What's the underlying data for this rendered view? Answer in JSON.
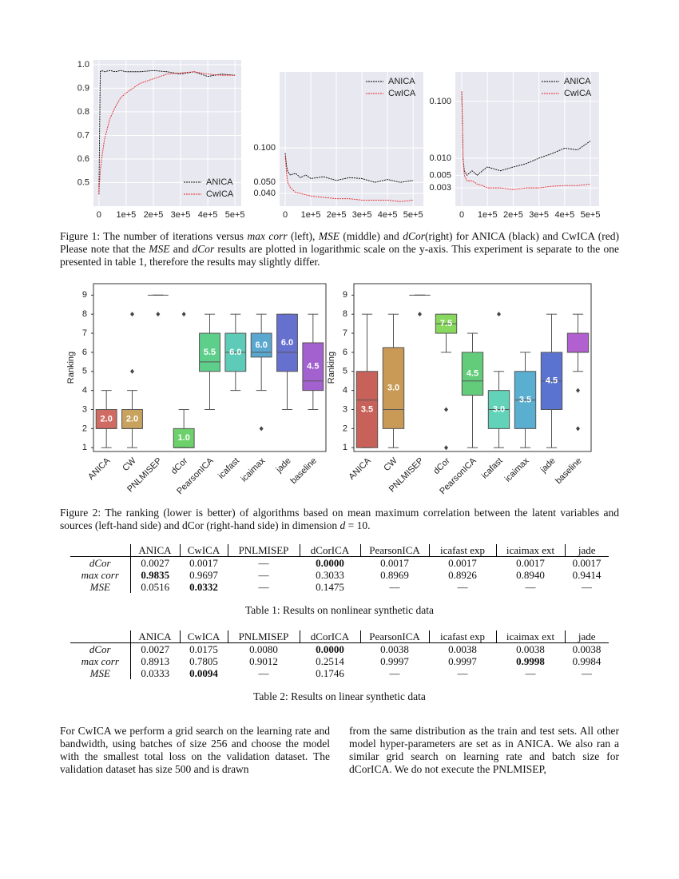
{
  "chart_data": [
    {
      "type": "line",
      "xlim": [
        -20000,
        523000
      ],
      "ylim": [
        0.4,
        1.02
      ],
      "xticks": [
        0,
        {
          "value": 100000,
          "label": "1e+5"
        },
        {
          "value": 200000,
          "label": "2e+5"
        },
        {
          "value": 300000,
          "label": "3e+5"
        },
        {
          "value": 400000,
          "label": "4e+5"
        },
        {
          "value": 500000,
          "label": "5e+5"
        }
      ],
      "yticks": [
        0.5,
        0.6,
        0.7,
        0.8,
        0.9,
        {
          "value": 1.0,
          "label": "1.0"
        }
      ],
      "grid": true,
      "legend": "lower right",
      "x": [
        0,
        5000,
        10000,
        20000,
        40000,
        60000,
        80000,
        100000,
        150000,
        200000,
        250000,
        300000,
        350000,
        400000,
        450000,
        500000
      ],
      "series": [
        {
          "name": "ANICA",
          "color": "#000000",
          "values": [
            0.45,
            0.97,
            0.975,
            0.97,
            0.975,
            0.97,
            0.975,
            0.97,
            0.97,
            0.975,
            0.97,
            0.96,
            0.97,
            0.95,
            0.96,
            0.955
          ]
        },
        {
          "name": "CwICA",
          "color": "#e8252a",
          "values": [
            0.45,
            0.55,
            0.6,
            0.68,
            0.77,
            0.82,
            0.86,
            0.88,
            0.92,
            0.94,
            0.96,
            0.965,
            0.97,
            0.96,
            0.955,
            0.955
          ]
        }
      ]
    },
    {
      "type": "line",
      "xlim": [
        -22000,
        540000
      ],
      "ylim": [
        0.031,
        0.46
      ],
      "yscale": "log",
      "xticks": [
        0,
        {
          "value": 100000,
          "label": "1e+5"
        },
        {
          "value": 200000,
          "label": "2e+5"
        },
        {
          "value": 300000,
          "label": "3e+5"
        },
        {
          "value": 400000,
          "label": "4e+5"
        },
        {
          "value": 500000,
          "label": "5e+5"
        }
      ],
      "yticks": [
        {
          "value": 0.04,
          "label": "0.040"
        },
        {
          "value": 0.05,
          "label": "0.050"
        },
        {
          "value": 0.1,
          "label": "0.100"
        }
      ],
      "grid": true,
      "legend": "upper right",
      "x": [
        0,
        5000,
        10000,
        20000,
        40000,
        60000,
        80000,
        100000,
        150000,
        200000,
        250000,
        300000,
        350000,
        400000,
        450000,
        500000
      ],
      "series": [
        {
          "name": "ANICA",
          "color": "#000000",
          "values": [
            0.09,
            0.07,
            0.062,
            0.058,
            0.06,
            0.055,
            0.058,
            0.054,
            0.056,
            0.052,
            0.055,
            0.054,
            0.05,
            0.053,
            0.05,
            0.052
          ]
        },
        {
          "name": "CwICA",
          "color": "#e8252a",
          "values": [
            0.085,
            0.06,
            0.05,
            0.045,
            0.041,
            0.04,
            0.039,
            0.038,
            0.037,
            0.036,
            0.036,
            0.035,
            0.035,
            0.035,
            0.034,
            0.035
          ]
        }
      ]
    },
    {
      "type": "line",
      "xlim": [
        -25000,
        534000
      ],
      "ylim": [
        0.00143,
        0.33
      ],
      "yscale": "log",
      "xticks": [
        0,
        {
          "value": 100000,
          "label": "1e+5"
        },
        {
          "value": 200000,
          "label": "2e+5"
        },
        {
          "value": 300000,
          "label": "3e+5"
        },
        {
          "value": 400000,
          "label": "4e+5"
        },
        {
          "value": 500000,
          "label": "5e+5"
        }
      ],
      "yticks": [
        {
          "value": 0.003,
          "label": "0.003"
        },
        {
          "value": 0.005,
          "label": "0.005"
        },
        {
          "value": 0.01,
          "label": "0.010"
        },
        {
          "value": 0.1,
          "label": "0.100"
        }
      ],
      "grid": true,
      "legend": "upper right",
      "x": [
        0,
        5000,
        10000,
        20000,
        40000,
        60000,
        80000,
        100000,
        150000,
        200000,
        250000,
        300000,
        350000,
        400000,
        450000,
        500000
      ],
      "series": [
        {
          "name": "ANICA",
          "color": "#000000",
          "values": [
            0.15,
            0.01,
            0.006,
            0.005,
            0.006,
            0.005,
            0.006,
            0.007,
            0.006,
            0.007,
            0.008,
            0.01,
            0.012,
            0.015,
            0.014,
            0.02
          ]
        },
        {
          "name": "CwICA",
          "color": "#e8252a",
          "values": [
            0.15,
            0.01,
            0.005,
            0.004,
            0.004,
            0.0035,
            0.0033,
            0.003,
            0.003,
            0.0028,
            0.003,
            0.003,
            0.0032,
            0.0033,
            0.0033,
            0.0035
          ]
        }
      ]
    },
    {
      "type": "box",
      "ylabel": "Ranking",
      "ylim": [
        0.8,
        9.6
      ],
      "yticks": [
        1,
        2,
        3,
        4,
        5,
        6,
        7,
        8,
        9
      ],
      "categories": [
        "ANICA",
        "CW",
        "PNLMISEP",
        "dCor",
        "PearsonICA",
        "icafast",
        "icaimax",
        "jade",
        "baseline"
      ],
      "colors": [
        "#cf6b62",
        "#c9a25d",
        "#a6c25a",
        "#6cd06b",
        "#5ecf8a",
        "#5ecbb8",
        "#5aa8cf",
        "#6670cf",
        "#a361cf"
      ],
      "whislo": [
        1,
        1,
        9,
        1,
        3,
        4,
        4,
        3,
        3
      ],
      "q1": [
        2,
        2,
        9,
        1,
        5,
        5,
        5.75,
        5,
        4
      ],
      "med": [
        2,
        2,
        9,
        1,
        5.5,
        6,
        6,
        6,
        4.5
      ],
      "q3": [
        3,
        3,
        9,
        2,
        7,
        7,
        7,
        8,
        6.5
      ],
      "whishi": [
        4,
        4,
        9,
        3,
        8,
        8,
        8,
        8,
        8
      ],
      "fliers": [
        [],
        [
          5,
          8
        ],
        [
          8
        ],
        [
          8
        ],
        [],
        [],
        [
          2
        ],
        [],
        []
      ],
      "value_labels": [
        "2.0",
        "2.0",
        null,
        "1.0",
        "5.5",
        "6.0",
        "6.0",
        "6.0",
        "4.5"
      ]
    },
    {
      "type": "box",
      "ylabel": "Ranking",
      "ylim": [
        0.8,
        9.6
      ],
      "yticks": [
        1,
        2,
        3,
        4,
        5,
        6,
        7,
        8,
        9
      ],
      "categories": [
        "ANICA",
        "CW",
        "PNLMISEP",
        "dCor",
        "PearsonICA",
        "icafast",
        "icaimax",
        "jade",
        "baseline"
      ],
      "colors": [
        "#c8615a",
        "#c89a55",
        "#a8c45a",
        "#88d85e",
        "#63cc7a",
        "#62d3b8",
        "#5aaed0",
        "#5b73d0",
        "#b25fd0"
      ],
      "whislo": [
        1,
        1,
        9,
        6,
        1,
        1,
        1,
        1,
        5
      ],
      "q1": [
        1,
        2,
        9,
        7,
        3.75,
        2,
        2,
        3,
        6
      ],
      "med": [
        3.5,
        3,
        9,
        7.5,
        4.5,
        3,
        3.5,
        4.5,
        6
      ],
      "q3": [
        5,
        6.25,
        9,
        8,
        6,
        4,
        5,
        6,
        7
      ],
      "whishi": [
        8,
        8,
        9,
        8,
        7,
        5,
        6,
        8,
        8
      ],
      "fliers": [
        [],
        [],
        [
          8
        ],
        [
          3,
          1
        ],
        [],
        [
          8
        ],
        [],
        [],
        [
          4,
          2
        ]
      ],
      "value_labels": [
        "3.5",
        "3.0",
        null,
        "7.5",
        "4.5",
        "3.0",
        "3.5",
        "4.5",
        null
      ]
    }
  ],
  "figure1_caption": [
    {
      "text": "Figure 1: The number of iterations versus "
    },
    {
      "text": "max corr",
      "italic": true
    },
    {
      "text": " (left), "
    },
    {
      "text": "MSE",
      "italic": true
    },
    {
      "text": " (middle) and "
    },
    {
      "text": "dCor",
      "italic": true
    },
    {
      "text": "(right) for ANICA (black) and CwICA (red)  Please note that the "
    },
    {
      "text": "MSE",
      "italic": true
    },
    {
      "text": " and "
    },
    {
      "text": "dCor",
      "italic": true
    },
    {
      "text": " results are plotted in logarithmic scale on the y-axis.  This experiment is separate to the one presented in table 1, therefore the results may slightly differ."
    }
  ],
  "figure2_caption": [
    {
      "text": "Figure 2:  The ranking (lower is better) of algorithms based on mean maximum correlation between the latent variables and sources (left-hand side) and dCor (right-hand side) in dimension "
    },
    {
      "text": "d",
      "italic": true
    },
    {
      "text": " = 10."
    }
  ],
  "tables": [
    {
      "columns": [
        "ANICA",
        "CwICA",
        "PNLMISEP",
        "dCorICA",
        "PearsonICA",
        "icafast exp",
        "icaimax ext",
        "jade"
      ],
      "rows": [
        {
          "label": "dCor",
          "cells": [
            "0.0027",
            "0.0017",
            "—",
            {
              "text": "0.0000",
              "bold": true
            },
            "0.0017",
            "0.0017",
            "0.0017",
            "0.0017"
          ]
        },
        {
          "label": "max corr",
          "cells": [
            {
              "text": "0.9835",
              "bold": true
            },
            "0.9697",
            "—",
            "0.3033",
            "0.8969",
            "0.8926",
            "0.8940",
            "0.9414"
          ]
        },
        {
          "label": "MSE",
          "cells": [
            "0.0516",
            {
              "text": "0.0332",
              "bold": true
            },
            "—",
            "0.1475",
            "—",
            "—",
            "—",
            "—"
          ]
        }
      ],
      "caption": "Table 1: Results on nonlinear synthetic data"
    },
    {
      "columns": [
        "ANICA",
        "CwICA",
        "PNLMISEP",
        "dCorICA",
        "PearsonICA",
        "icafast exp",
        "icaimax ext",
        "jade"
      ],
      "rows": [
        {
          "label": "dCor",
          "cells": [
            "0.0027",
            "0.0175",
            "0.0080",
            {
              "text": "0.0000",
              "bold": true
            },
            "0.0038",
            "0.0038",
            "0.0038",
            "0.0038"
          ]
        },
        {
          "label": "max corr",
          "cells": [
            "0.8913",
            "0.7805",
            "0.9012",
            "0.2514",
            "0.9997",
            "0.9997",
            {
              "text": "0.9998",
              "bold": true
            },
            "0.9984"
          ]
        },
        {
          "label": "MSE",
          "cells": [
            "0.0333",
            {
              "text": "0.0094",
              "bold": true
            },
            "—",
            "0.1746",
            "—",
            "—",
            "—",
            "—"
          ]
        }
      ],
      "caption": "Table 2: Results on linear synthetic data"
    }
  ],
  "body": [
    "For CwICA we perform a grid search on the learning rate and bandwidth, using batches of size 256 and choose the model with the smallest total loss on the validation dataset. The validation dataset has size 500 and is drawn",
    "from the same distribution as the train and test sets. All other model hyper-parameters are set as in ANICA. We also ran a similar grid search on learning rate and batch size for dCorICA. We do not execute the PNLMISEP,"
  ]
}
